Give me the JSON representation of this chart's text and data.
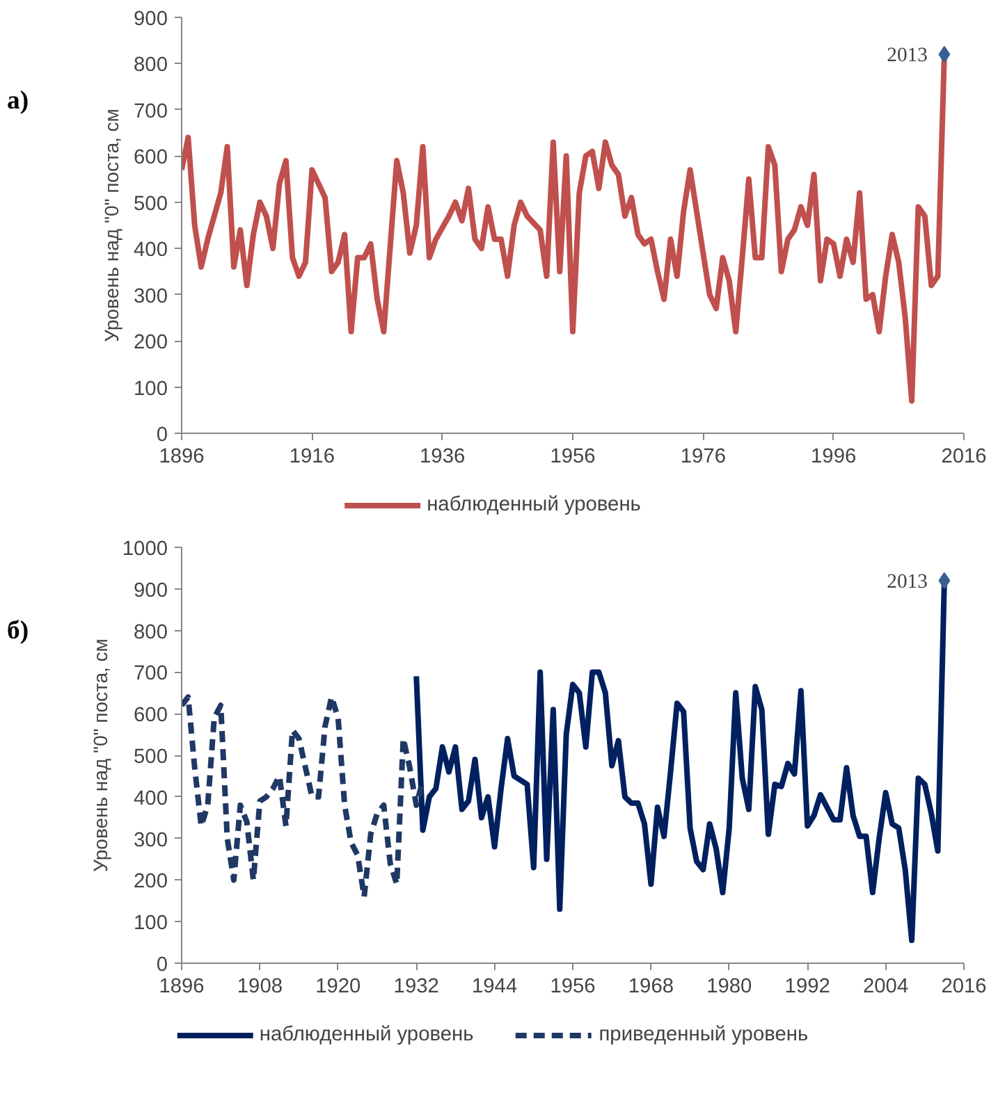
{
  "chart_data": [
    {
      "type": "line",
      "title": "а)",
      "ylabel": "Уровень над \"0\" поста, см",
      "xlim": [
        1896,
        2016
      ],
      "xticks": [
        1896,
        1916,
        1936,
        1956,
        1976,
        1996,
        2016
      ],
      "ylim": [
        0,
        900
      ],
      "yticks": [
        0,
        100,
        200,
        300,
        400,
        500,
        600,
        700,
        800,
        900
      ],
      "legend": "bottom",
      "grid": false,
      "annotations": [
        {
          "text": "2013",
          "x": 2013,
          "y": 820
        }
      ],
      "series": [
        {
          "name": "наблюденный уровень",
          "color": "#c0504d",
          "line_style": "solid",
          "x": [
            1896,
            1897,
            1898,
            1899,
            1900,
            1902,
            1903,
            1904,
            1905,
            1906,
            1907,
            1908,
            1909,
            1910,
            1911,
            1912,
            1913,
            1914,
            1915,
            1916,
            1918,
            1919,
            1920,
            1921,
            1922,
            1923,
            1924,
            1925,
            1926,
            1927,
            1929,
            1930,
            1931,
            1932,
            1933,
            1934,
            1935,
            1937,
            1938,
            1939,
            1940,
            1941,
            1942,
            1943,
            1944,
            1945,
            1946,
            1947,
            1948,
            1949,
            1951,
            1952,
            1953,
            1954,
            1955,
            1956,
            1957,
            1958,
            1959,
            1960,
            1961,
            1962,
            1963,
            1964,
            1965,
            1966,
            1967,
            1968,
            1969,
            1970,
            1971,
            1972,
            1973,
            1974,
            1975,
            1976,
            1977,
            1978,
            1979,
            1980,
            1981,
            1982,
            1983,
            1984,
            1985,
            1986,
            1987,
            1988,
            1989,
            1990,
            1991,
            1992,
            1993,
            1994,
            1995,
            1996,
            1997,
            1998,
            1999,
            2000,
            2001,
            2002,
            2003,
            2004,
            2005,
            2006,
            2007,
            2008,
            2009,
            2010,
            2011,
            2012,
            2013
          ],
          "values": [
            570,
            640,
            450,
            360,
            420,
            520,
            620,
            360,
            440,
            320,
            430,
            500,
            470,
            400,
            540,
            590,
            380,
            340,
            370,
            570,
            510,
            350,
            370,
            430,
            220,
            380,
            380,
            410,
            290,
            220,
            590,
            520,
            390,
            450,
            620,
            380,
            420,
            470,
            500,
            460,
            530,
            420,
            400,
            490,
            420,
            420,
            340,
            450,
            500,
            470,
            440,
            340,
            630,
            350,
            600,
            220,
            520,
            600,
            610,
            530,
            630,
            580,
            560,
            470,
            510,
            430,
            410,
            420,
            350,
            290,
            420,
            340,
            480,
            570,
            480,
            390,
            300,
            270,
            380,
            330,
            220,
            380,
            550,
            380,
            380,
            620,
            580,
            350,
            420,
            440,
            490,
            450,
            560,
            330,
            420,
            410,
            340,
            420,
            370,
            520,
            290,
            300,
            220,
            340,
            430,
            370,
            250,
            70,
            490,
            470,
            320,
            340,
            820
          ]
        },
        {
          "type": "scatter",
          "color": "#376092",
          "marker": "diamond",
          "x": [
            2013
          ],
          "values": [
            820
          ]
        }
      ]
    },
    {
      "type": "line",
      "title": "б)",
      "ylabel": "Уровень над \"0\" поста, см",
      "xlim": [
        1896,
        2016
      ],
      "xticks": [
        1896,
        1908,
        1920,
        1932,
        1944,
        1956,
        1968,
        1980,
        1992,
        2004,
        2016
      ],
      "ylim": [
        0,
        1000
      ],
      "yticks": [
        0,
        100,
        200,
        300,
        400,
        500,
        600,
        700,
        800,
        900,
        1000
      ],
      "legend": "bottom",
      "grid": false,
      "annotations": [
        {
          "text": "2013",
          "x": 2013,
          "y": 920
        }
      ],
      "series": [
        {
          "name": "наблюденный уровень",
          "color": "#002060",
          "line_style": "solid",
          "x": [
            1932,
            1933,
            1934,
            1935,
            1936,
            1937,
            1938,
            1939,
            1940,
            1941,
            1942,
            1943,
            1944,
            1945,
            1946,
            1947,
            1948,
            1949,
            1950,
            1951,
            1952,
            1953,
            1954,
            1955,
            1956,
            1957,
            1958,
            1959,
            1960,
            1961,
            1962,
            1963,
            1964,
            1965,
            1966,
            1967,
            1968,
            1969,
            1970,
            1971,
            1972,
            1973,
            1974,
            1975,
            1976,
            1977,
            1978,
            1979,
            1980,
            1981,
            1982,
            1983,
            1984,
            1985,
            1986,
            1987,
            1988,
            1989,
            1990,
            1991,
            1992,
            1993,
            1994,
            1995,
            1996,
            1997,
            1998,
            1999,
            2000,
            2001,
            2002,
            2003,
            2004,
            2005,
            2006,
            2007,
            2008,
            2009,
            2010,
            2011,
            2012,
            2013
          ],
          "values": [
            690,
            320,
            400,
            420,
            520,
            460,
            520,
            370,
            390,
            490,
            350,
            400,
            280,
            420,
            540,
            450,
            440,
            430,
            230,
            700,
            250,
            610,
            130,
            550,
            670,
            650,
            520,
            700,
            700,
            650,
            475,
            535,
            400,
            385,
            385,
            335,
            190,
            375,
            305,
            460,
            625,
            605,
            325,
            245,
            225,
            335,
            275,
            170,
            325,
            650,
            445,
            370,
            665,
            610,
            310,
            430,
            425,
            480,
            455,
            655,
            330,
            355,
            405,
            375,
            345,
            345,
            470,
            355,
            305,
            305,
            170,
            300,
            410,
            335,
            325,
            225,
            55,
            445,
            430,
            360,
            270,
            920
          ]
        },
        {
          "name": "приведенный уровень",
          "color": "#1f3864",
          "line_style": "dashed",
          "x": [
            1896,
            1897,
            1898,
            1899,
            1900,
            1901,
            1902,
            1903,
            1904,
            1905,
            1906,
            1907,
            1908,
            1909,
            1910,
            1911,
            1912,
            1913,
            1914,
            1915,
            1916,
            1917,
            1918,
            1919,
            1920,
            1921,
            1922,
            1923,
            1924,
            1925,
            1926,
            1927,
            1928,
            1929,
            1930,
            1931,
            1932,
            1933
          ],
          "values": [
            620,
            640,
            470,
            330,
            380,
            590,
            620,
            300,
            200,
            380,
            340,
            200,
            390,
            400,
            420,
            450,
            330,
            560,
            540,
            470,
            400,
            400,
            570,
            640,
            590,
            380,
            290,
            260,
            160,
            310,
            360,
            380,
            240,
            190,
            540,
            470,
            380,
            440
          ]
        },
        {
          "type": "scatter",
          "color": "#376092",
          "marker": "diamond",
          "x": [
            2013
          ],
          "values": [
            920
          ]
        }
      ]
    }
  ]
}
